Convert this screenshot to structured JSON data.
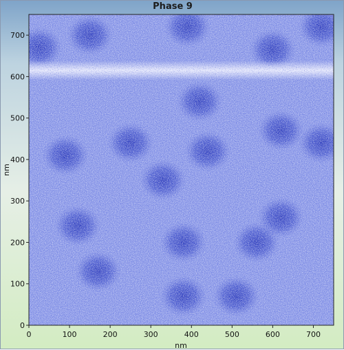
{
  "window": {
    "title": "Phase 9"
  },
  "plot": {
    "xlabel": "nm",
    "ylabel": "nm",
    "x_ticks": [
      "0",
      "100",
      "200",
      "300",
      "400",
      "500",
      "600",
      "700"
    ],
    "y_ticks": [
      "0",
      "100",
      "200",
      "300",
      "400",
      "500",
      "600",
      "700"
    ],
    "xlim": [
      0,
      750
    ],
    "ylim": [
      0,
      750
    ],
    "colors": {
      "base": "#7f8ee6",
      "dark": "#2b3cc4",
      "light": "#eef0ff",
      "axis": "#222222"
    }
  },
  "chart_data": {
    "type": "heatmap",
    "title": "Phase 9",
    "xlabel": "nm",
    "ylabel": "nm",
    "xlim": [
      0,
      750
    ],
    "ylim": [
      0,
      750
    ],
    "domains": [
      {
        "x": 25,
        "y": 670
      },
      {
        "x": 150,
        "y": 700
      },
      {
        "x": 390,
        "y": 720
      },
      {
        "x": 600,
        "y": 665
      },
      {
        "x": 720,
        "y": 720
      },
      {
        "x": 420,
        "y": 540
      },
      {
        "x": 620,
        "y": 470
      },
      {
        "x": 90,
        "y": 410
      },
      {
        "x": 250,
        "y": 440
      },
      {
        "x": 440,
        "y": 420
      },
      {
        "x": 720,
        "y": 440
      },
      {
        "x": 330,
        "y": 350
      },
      {
        "x": 620,
        "y": 260
      },
      {
        "x": 380,
        "y": 200
      },
      {
        "x": 170,
        "y": 130
      },
      {
        "x": 380,
        "y": 70
      },
      {
        "x": 510,
        "y": 70
      },
      {
        "x": 120,
        "y": 240
      },
      {
        "x": 560,
        "y": 200
      }
    ],
    "bright_band_y": 615
  }
}
